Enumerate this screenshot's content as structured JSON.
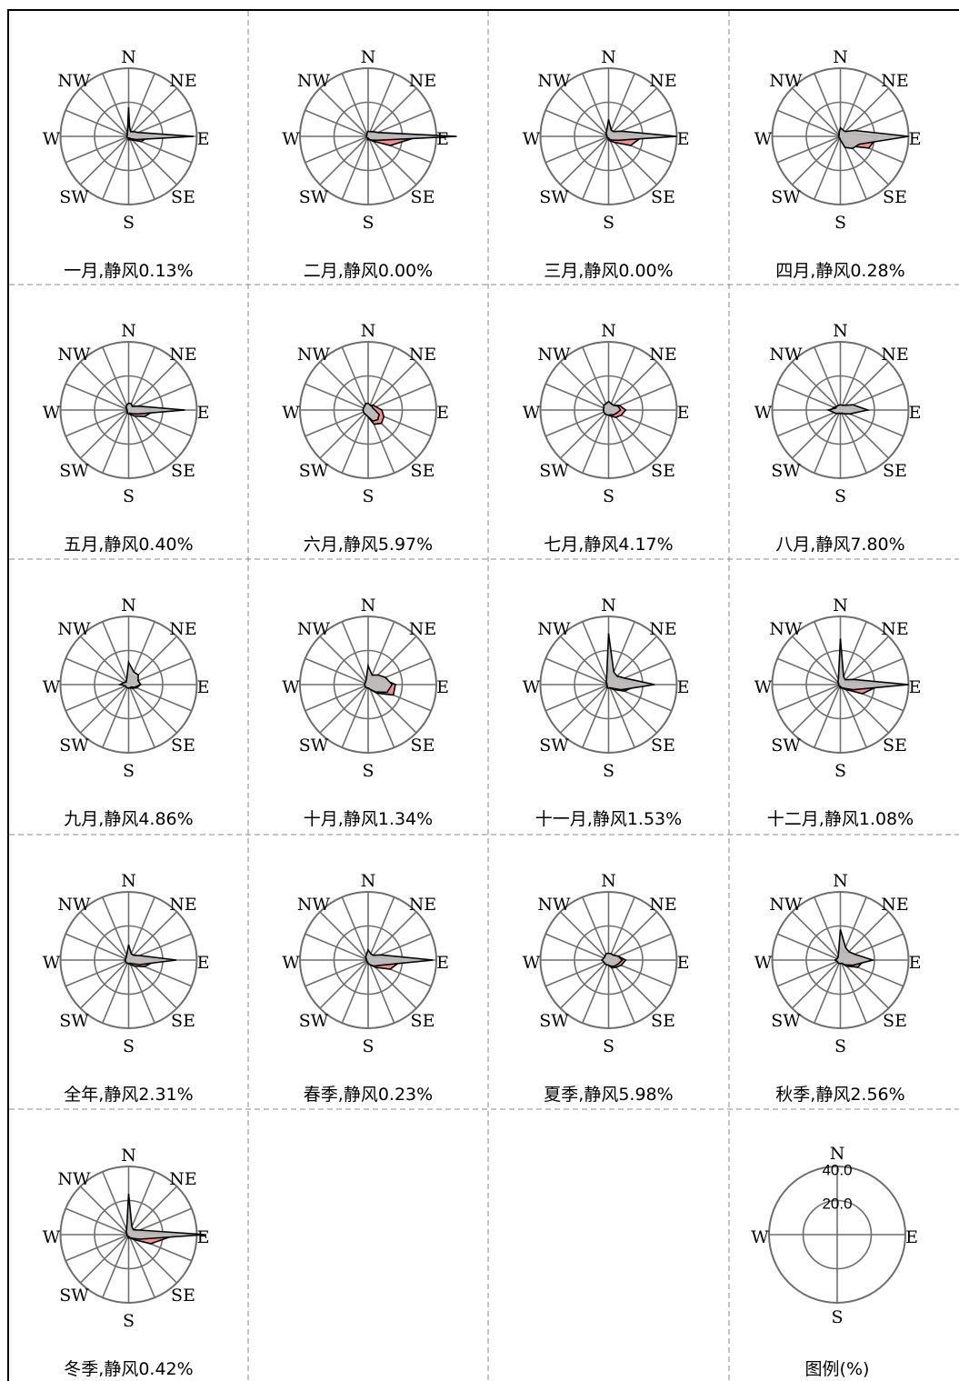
{
  "directions": [
    "N",
    "NNE",
    "NE",
    "ENE",
    "E",
    "ESE",
    "SE",
    "SSE",
    "S",
    "SSW",
    "SW",
    "WSW",
    "W",
    "WNW",
    "NW",
    "NNW"
  ],
  "compass_labels": [
    "N",
    "NE",
    "E",
    "SE",
    "S",
    "SW",
    "W",
    "NW"
  ],
  "colors": {
    "wind_freq_fill": "#f28c8c",
    "wind_speed_fill": "#bdbdbd",
    "grid": "#6e6e6e",
    "outline": "#000000"
  },
  "chart_data": [
    {
      "type": "radar",
      "title": "一月,静风0.13%",
      "rlim": [
        0,
        40
      ],
      "rings": [
        20,
        40
      ],
      "series": [
        {
          "values": [
            17,
            2,
            3,
            3,
            12,
            8,
            3,
            2,
            2,
            1,
            1,
            1,
            1,
            1,
            1,
            2
          ]
        },
        {
          "values": [
            8,
            3,
            4,
            6,
            38,
            5,
            2,
            1,
            1,
            1,
            1,
            1,
            1,
            1,
            1,
            2
          ]
        }
      ]
    },
    {
      "type": "radar",
      "title": "二月,静风0.00%",
      "rlim": [
        0,
        40
      ],
      "rings": [
        20,
        40
      ],
      "series": [
        {
          "values": [
            2,
            2,
            3,
            5,
            30,
            14,
            4,
            2,
            2,
            1,
            1,
            1,
            1,
            1,
            1,
            1
          ]
        },
        {
          "values": [
            3,
            3,
            4,
            6,
            52,
            6,
            3,
            2,
            1,
            1,
            1,
            1,
            1,
            1,
            1,
            2
          ]
        }
      ]
    },
    {
      "type": "radar",
      "title": "三月,静风0.00%",
      "rlim": [
        0,
        40
      ],
      "rings": [
        20,
        40
      ],
      "series": [
        {
          "values": [
            5,
            4,
            3,
            5,
            20,
            14,
            5,
            3,
            2,
            1,
            1,
            1,
            1,
            1,
            2,
            3
          ]
        },
        {
          "values": [
            10,
            4,
            4,
            8,
            40,
            6,
            3,
            2,
            1,
            1,
            1,
            1,
            1,
            1,
            2,
            3
          ]
        }
      ]
    },
    {
      "type": "radar",
      "title": "四月,静风0.28%",
      "rlim": [
        0,
        40
      ],
      "rings": [
        20,
        40
      ],
      "series": [
        {
          "values": [
            3,
            3,
            3,
            5,
            22,
            18,
            8,
            3,
            2,
            1,
            1,
            1,
            1,
            1,
            1,
            2
          ]
        },
        {
          "values": [
            5,
            4,
            4,
            9,
            40,
            12,
            10,
            7,
            2,
            1,
            1,
            1,
            1,
            1,
            1,
            2
          ]
        }
      ]
    },
    {
      "type": "radar",
      "title": "五月,静风0.40%",
      "rlim": [
        0,
        40
      ],
      "rings": [
        20,
        40
      ],
      "series": [
        {
          "values": [
            3,
            3,
            3,
            4,
            16,
            10,
            5,
            3,
            2,
            2,
            1,
            1,
            1,
            1,
            2,
            2
          ]
        },
        {
          "values": [
            4,
            4,
            3,
            6,
            33,
            6,
            3,
            2,
            2,
            2,
            1,
            1,
            1,
            1,
            2,
            3
          ]
        }
      ]
    },
    {
      "type": "radar",
      "title": "六月,静风5.97%",
      "rlim": [
        0,
        40
      ],
      "rings": [
        20,
        40
      ],
      "series": [
        {
          "values": [
            3,
            3,
            4,
            5,
            8,
            10,
            11,
            9,
            4,
            3,
            2,
            2,
            2,
            2,
            2,
            3
          ]
        },
        {
          "values": [
            4,
            3,
            3,
            3,
            4,
            7,
            8,
            7,
            4,
            3,
            3,
            3,
            3,
            3,
            3,
            4
          ]
        }
      ]
    },
    {
      "type": "radar",
      "title": "七月,静风4.17%",
      "rlim": [
        0,
        40
      ],
      "rings": [
        20,
        40
      ],
      "series": [
        {
          "values": [
            4,
            4,
            4,
            7,
            10,
            8,
            6,
            4,
            3,
            2,
            2,
            2,
            3,
            3,
            3,
            3
          ]
        },
        {
          "values": [
            5,
            4,
            4,
            6,
            7,
            5,
            4,
            3,
            3,
            3,
            3,
            3,
            3,
            3,
            4,
            4
          ]
        }
      ]
    },
    {
      "type": "radar",
      "title": "八月,静风7.80%",
      "rlim": [
        0,
        40
      ],
      "rings": [
        20,
        40
      ],
      "series": [
        {
          "values": [
            3,
            3,
            3,
            5,
            12,
            6,
            3,
            2,
            2,
            2,
            2,
            3,
            6,
            4,
            3,
            3
          ]
        },
        {
          "values": [
            3,
            3,
            4,
            8,
            16,
            6,
            3,
            2,
            2,
            2,
            3,
            4,
            7,
            3,
            3,
            3
          ]
        }
      ]
    },
    {
      "type": "radar",
      "title": "九月,静风4.86%",
      "rlim": [
        0,
        40
      ],
      "rings": [
        20,
        40
      ],
      "series": [
        {
          "values": [
            6,
            5,
            6,
            6,
            7,
            5,
            3,
            2,
            2,
            2,
            2,
            2,
            3,
            2,
            2,
            3
          ]
        },
        {
          "values": [
            13,
            8,
            8,
            6,
            7,
            4,
            2,
            2,
            2,
            2,
            2,
            2,
            5,
            3,
            2,
            3
          ]
        }
      ]
    },
    {
      "type": "radar",
      "title": "十月,静风1.34%",
      "rlim": [
        0,
        40
      ],
      "rings": [
        20,
        40
      ],
      "series": [
        {
          "values": [
            6,
            5,
            6,
            9,
            16,
            16,
            7,
            3,
            2,
            2,
            2,
            2,
            2,
            2,
            2,
            3
          ]
        },
        {
          "values": [
            11,
            6,
            8,
            11,
            14,
            12,
            6,
            3,
            2,
            2,
            2,
            2,
            2,
            2,
            2,
            3
          ]
        }
      ]
    },
    {
      "type": "radar",
      "title": "十一月,静风1.53%",
      "rlim": [
        0,
        40
      ],
      "rings": [
        20,
        40
      ],
      "series": [
        {
          "values": [
            10,
            6,
            6,
            8,
            18,
            10,
            4,
            2,
            2,
            2,
            1,
            1,
            1,
            1,
            2,
            3
          ]
        },
        {
          "values": [
            30,
            8,
            7,
            10,
            27,
            8,
            3,
            2,
            2,
            2,
            1,
            1,
            1,
            1,
            2,
            3
          ]
        }
      ]
    },
    {
      "type": "radar",
      "title": "十二月,静风1.08%",
      "rlim": [
        0,
        40
      ],
      "rings": [
        20,
        40
      ],
      "series": [
        {
          "values": [
            15,
            5,
            4,
            5,
            24,
            14,
            4,
            2,
            2,
            1,
            1,
            1,
            1,
            1,
            2,
            3
          ]
        },
        {
          "values": [
            27,
            5,
            4,
            8,
            40,
            8,
            3,
            2,
            1,
            1,
            1,
            1,
            1,
            1,
            2,
            3
          ]
        }
      ]
    },
    {
      "type": "radar",
      "title": "全年,静风2.31%",
      "rlim": [
        0,
        40
      ],
      "rings": [
        20,
        40
      ],
      "series": [
        {
          "values": [
            6,
            4,
            4,
            6,
            17,
            10,
            5,
            3,
            2,
            2,
            1,
            1,
            2,
            1,
            2,
            3
          ]
        },
        {
          "values": [
            9,
            4,
            4,
            7,
            28,
            7,
            3,
            2,
            2,
            2,
            2,
            2,
            2,
            2,
            2,
            3
          ]
        }
      ]
    },
    {
      "type": "radar",
      "title": "春季,静风0.23%",
      "rlim": [
        0,
        40
      ],
      "rings": [
        20,
        40
      ],
      "series": [
        {
          "values": [
            3,
            3,
            3,
            5,
            20,
            14,
            6,
            3,
            2,
            1,
            1,
            1,
            1,
            1,
            2,
            2
          ]
        },
        {
          "values": [
            6,
            4,
            4,
            8,
            38,
            8,
            5,
            3,
            2,
            1,
            1,
            1,
            1,
            1,
            2,
            3
          ]
        }
      ]
    },
    {
      "type": "radar",
      "title": "夏季,静风5.98%",
      "rlim": [
        0,
        40
      ],
      "rings": [
        20,
        40
      ],
      "series": [
        {
          "values": [
            3,
            3,
            4,
            6,
            10,
            8,
            6,
            5,
            3,
            2,
            2,
            2,
            3,
            3,
            3,
            3
          ]
        },
        {
          "values": [
            4,
            4,
            4,
            6,
            8,
            6,
            5,
            4,
            3,
            3,
            3,
            3,
            4,
            3,
            3,
            4
          ]
        }
      ]
    },
    {
      "type": "radar",
      "title": "秋季,静风2.56%",
      "rlim": [
        0,
        40
      ],
      "rings": [
        20,
        40
      ],
      "series": [
        {
          "values": [
            8,
            5,
            6,
            8,
            14,
            11,
            5,
            2,
            2,
            2,
            2,
            2,
            2,
            2,
            2,
            3
          ]
        },
        {
          "values": [
            18,
            8,
            7,
            9,
            19,
            8,
            4,
            2,
            2,
            2,
            2,
            2,
            3,
            2,
            2,
            3
          ]
        }
      ]
    },
    {
      "type": "radar",
      "title": "冬季,静风0.42%",
      "rlim": [
        0,
        40
      ],
      "rings": [
        20,
        40
      ],
      "series": [
        {
          "values": [
            14,
            4,
            4,
            5,
            28,
            14,
            4,
            2,
            2,
            1,
            1,
            1,
            1,
            1,
            2,
            3
          ]
        },
        {
          "values": [
            24,
            5,
            4,
            7,
            45,
            7,
            3,
            2,
            1,
            1,
            1,
            1,
            1,
            1,
            2,
            3
          ]
        }
      ]
    }
  ],
  "legend": {
    "title": "图例(%)",
    "ring_labels": [
      "40.0",
      "20.0"
    ],
    "compass_labels": [
      "N",
      "E",
      "S",
      "W"
    ]
  }
}
